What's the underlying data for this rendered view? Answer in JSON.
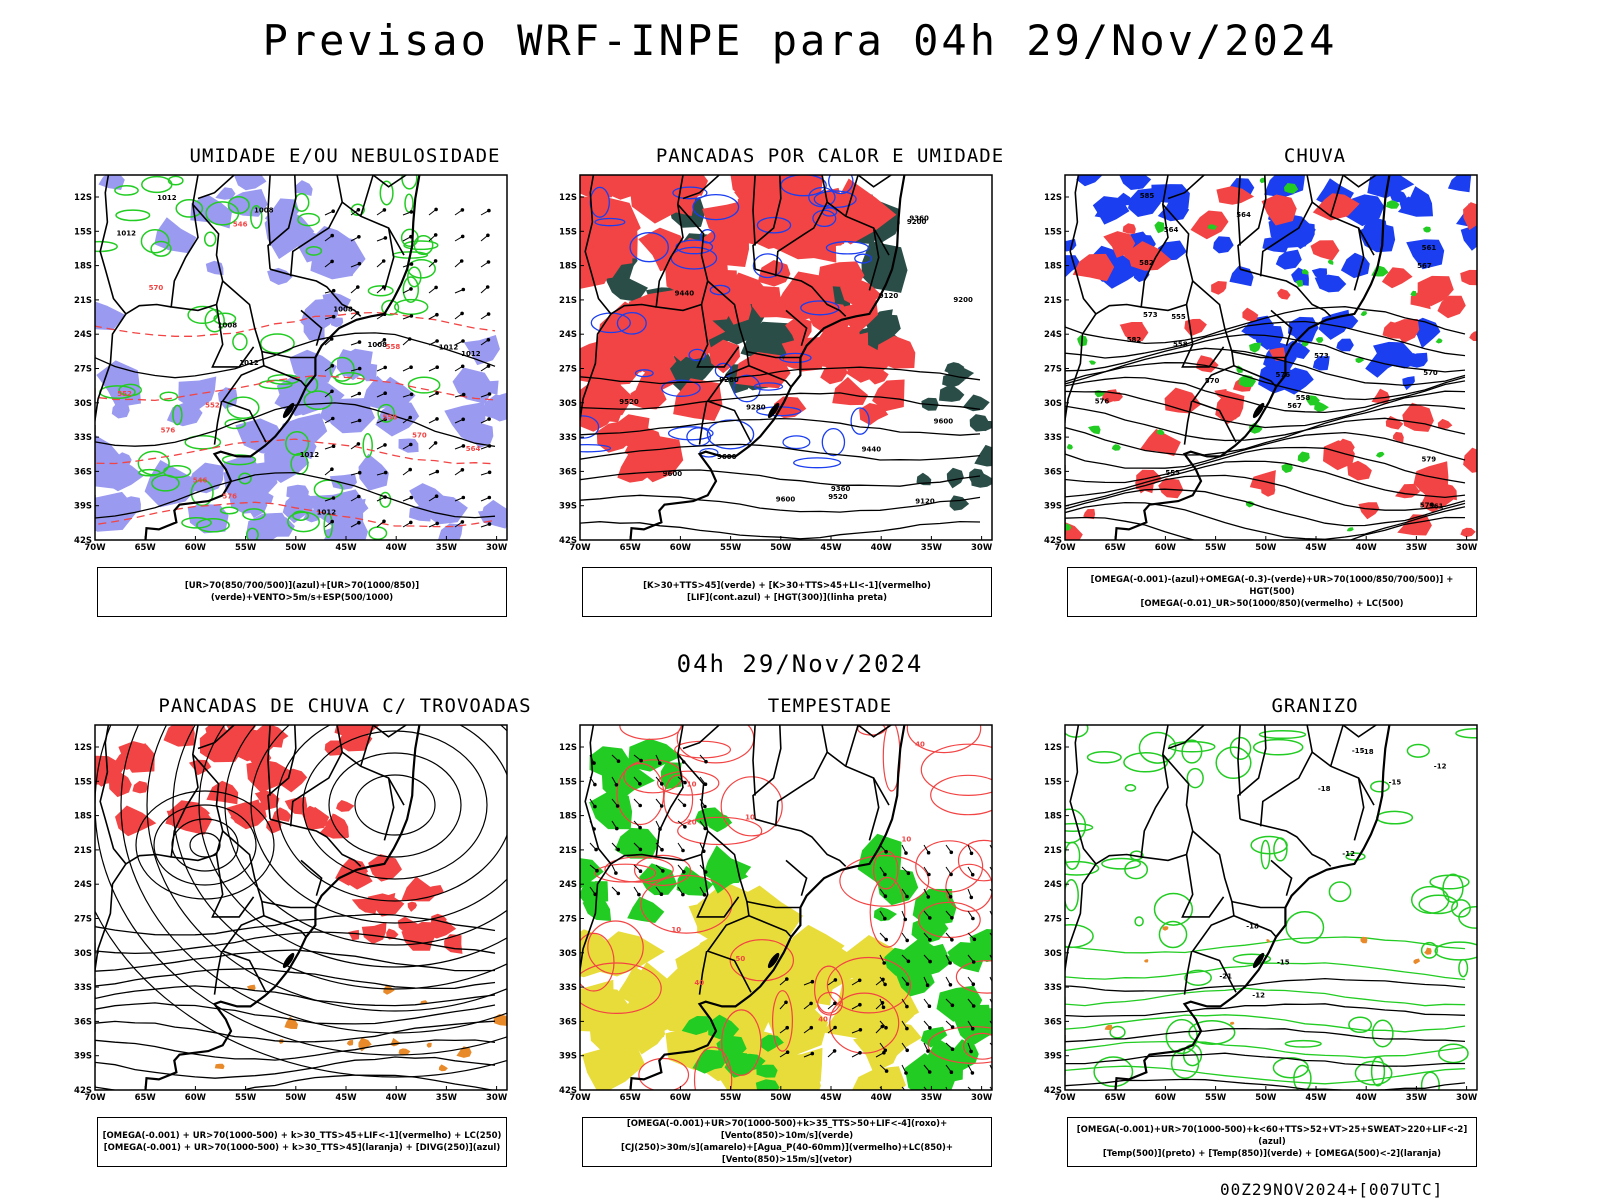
{
  "header": {
    "title": "Previsao WRF-INPE  para 04h 29/Nov/2024",
    "mid_title": "04h 29/Nov/2024",
    "footer": "00Z29NOV2024+[007UTC]"
  },
  "axes": {
    "lat_labels": [
      "12S",
      "15S",
      "18S",
      "21S",
      "24S",
      "27S",
      "30S",
      "33S",
      "36S",
      "39S",
      "42S"
    ],
    "lon_labels": [
      "70W",
      "65W",
      "60W",
      "55W",
      "50W",
      "45W",
      "40W",
      "35W",
      "30W"
    ]
  },
  "colors": {
    "humidity_blue": "#9a9af0",
    "thermo_red": "#f24444",
    "dark_teal": "#2b4d48",
    "omega_blue": "#1a3ef0",
    "green": "#22cc22",
    "orange": "#e88a2a",
    "yellow": "#e8dc3a"
  },
  "panels": [
    {
      "title": "UMIDADE E/OU NEBULOSIDADE",
      "legend": [
        "[UR>70(850/700/500)](azul)+[UR>70(1000/850)](verde)+VENTO>5m/s+ESP(500/1000)"
      ],
      "contour_labels": [
        "1008",
        "1012",
        "1012",
        "1008",
        "1012",
        "1012",
        "1008",
        "1012",
        "1012",
        "1012",
        "1008",
        "570",
        "576",
        "564",
        "558",
        "552",
        "546",
        "570",
        "558",
        "552",
        "546",
        "576"
      ]
    },
    {
      "title": "PANCADAS POR CALOR E UMIDADE",
      "legend": [
        "[K>30+TTS>45](verde) + [K>30+TTS>45+LI<-1](vermelho)",
        "[LIF](cont.azul) + [HGT(300)](linha preta)"
      ],
      "contour_labels": [
        "9600",
        "9600",
        "9600",
        "9520",
        "9440",
        "9360",
        "9280",
        "9200",
        "9120",
        "9600",
        "9520",
        "9440",
        "9360",
        "9280",
        "9200",
        "9120"
      ]
    },
    {
      "title": "CHUVA",
      "legend": [
        "[OMEGA(-0.001)-(azul)+OMEGA(-0.3)-(verde)+UR>70(1000/850/700/500)] + HGT(500)",
        "[OMEGA(-0.01)_UR>50(1000/850)(vermelho) + LC(500)"
      ],
      "contour_labels": [
        "585",
        "582",
        "579",
        "576",
        "573",
        "570",
        "567",
        "564",
        "561",
        "558",
        "555",
        "582",
        "579",
        "576",
        "573",
        "570",
        "567",
        "564",
        "561",
        "558",
        "555"
      ]
    },
    {
      "title": "PANCADAS DE CHUVA C/ TROVOADAS",
      "legend": [
        "[OMEGA(-0.001) + UR>70(1000-500) + k>30_TTS>45+LIF<-1](vermelho) + LC(250)",
        "[OMEGA(-0.001) + UR>70(1000-500) + k>30_TTS>45](laranja) + [DIVG(250)](azul)"
      ]
    },
    {
      "title": "TEMPESTADE",
      "legend": [
        "[OMEGA(-0.001)+UR>70(1000-500)+k>35_TTS>50+LIF<-4](roxo)+[Vento(850)>10m/s](verde)",
        "[CJ(250)>30m/s](amarelo)+[Agua_P(40-60mm)](vermelho)+LC(850)+[Vento(850)>15m/s](vetor)"
      ],
      "contour_labels": [
        "10",
        "10",
        "20",
        "40",
        "40",
        "50",
        "10",
        "40",
        "10"
      ]
    },
    {
      "title": "GRANIZO",
      "legend": [
        "[OMEGA(-0.001)+UR>70(1000-500)+k<60+TTS>52+VT>25+SWEAT>220+LIF<-2](azul)",
        "[Temp(500)](preto) + [Temp(850)](verde) + [OMEGA(500)<-2](laranja)"
      ],
      "contour_labels": [
        "-12",
        "-12",
        "-12",
        "-15",
        "-15",
        "-18",
        "-18",
        "-21",
        "-15",
        "-18"
      ]
    }
  ]
}
